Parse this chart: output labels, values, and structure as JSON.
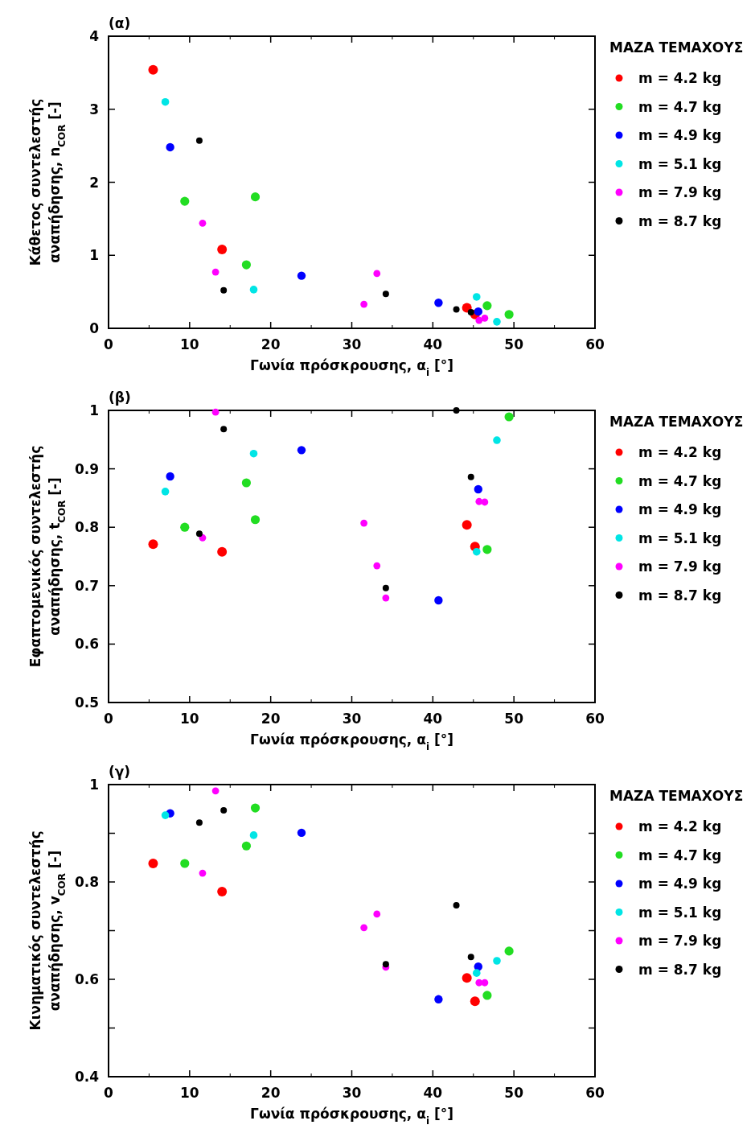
{
  "chart_data": [
    {
      "type": "scatter",
      "title": "(α)",
      "xlabel": "Γωνία πρόσκρουσης, α$_{i}$ [°]",
      "ylabel": "Κάθετος συντελεστής\nαναπήδησης, n$_{COR}$ [-]",
      "legend_title": "ΜΑΖΑ ΤΕΜΑΧΟΥΣ",
      "legend": "right",
      "marker": "circle",
      "xlim": [
        0,
        60
      ],
      "xticks": [
        0,
        10,
        20,
        30,
        40,
        50,
        60
      ],
      "ylim": [
        0,
        4
      ],
      "yticks": [
        0,
        1,
        2,
        3,
        4
      ],
      "series": [
        {
          "name": "m = 4.2 kg",
          "color": "#ff0000",
          "x": [
            5.5,
            14.0,
            44.2,
            45.2
          ],
          "values": [
            3.54,
            1.08,
            0.28,
            0.19
          ]
        },
        {
          "name": "m = 4.7 kg",
          "color": "#22dd22",
          "x": [
            9.4,
            17.0,
            18.1,
            46.7,
            49.4
          ],
          "values": [
            1.74,
            0.87,
            1.8,
            0.31,
            0.19
          ]
        },
        {
          "name": "m = 4.9 kg",
          "color": "#0000ff",
          "x": [
            7.6,
            23.8,
            40.7,
            45.6
          ],
          "values": [
            2.48,
            0.72,
            0.35,
            0.23
          ]
        },
        {
          "name": "m = 5.1 kg",
          "color": "#00e5e5",
          "x": [
            7.0,
            17.9,
            45.4,
            47.9
          ],
          "values": [
            3.1,
            0.53,
            0.43,
            0.09
          ]
        },
        {
          "name": "m = 7.9 kg",
          "color": "#ff00ff",
          "x": [
            11.6,
            13.2,
            31.5,
            33.1,
            45.7,
            46.4
          ],
          "values": [
            1.44,
            0.77,
            0.33,
            0.75,
            0.11,
            0.14
          ]
        },
        {
          "name": "m = 8.7 kg",
          "color": "#000000",
          "x": [
            11.2,
            14.2,
            34.2,
            42.9,
            44.7
          ],
          "values": [
            2.57,
            0.52,
            0.47,
            0.26,
            0.22
          ]
        }
      ]
    },
    {
      "type": "scatter",
      "title": "(β)",
      "xlabel": "Γωνία πρόσκρουσης, α$_{i}$ [°]",
      "ylabel": "Εφαπτομενικός συντελεστής\nαναπήδησης, t$_{COR}$ [-]",
      "legend_title": "ΜΑΖΑ ΤΕΜΑΧΟΥΣ",
      "legend": "right",
      "marker": "circle",
      "xlim": [
        0,
        60
      ],
      "xticks": [
        0,
        10,
        20,
        30,
        40,
        50,
        60
      ],
      "ylim": [
        0.5,
        1
      ],
      "yticks": [
        0.5,
        0.6,
        0.7,
        0.8,
        0.9,
        1
      ],
      "series": [
        {
          "name": "m = 4.2 kg",
          "color": "#ff0000",
          "x": [
            5.5,
            14.0,
            44.2,
            45.2
          ],
          "values": [
            0.771,
            0.758,
            0.804,
            0.767
          ]
        },
        {
          "name": "m = 4.7 kg",
          "color": "#22dd22",
          "x": [
            9.4,
            17.0,
            18.1,
            46.7,
            49.4
          ],
          "values": [
            0.8,
            0.876,
            0.813,
            0.762,
            0.989
          ]
        },
        {
          "name": "m = 4.9 kg",
          "color": "#0000ff",
          "x": [
            7.6,
            23.8,
            40.7,
            45.6
          ],
          "values": [
            0.887,
            0.932,
            0.675,
            0.865
          ]
        },
        {
          "name": "m = 5.1 kg",
          "color": "#00e5e5",
          "x": [
            7.0,
            17.9,
            45.4,
            47.9
          ],
          "values": [
            0.861,
            0.926,
            0.758,
            0.949
          ]
        },
        {
          "name": "m = 7.9 kg",
          "color": "#ff00ff",
          "x": [
            11.6,
            13.2,
            31.5,
            33.1,
            34.2,
            45.7,
            46.4
          ],
          "values": [
            0.782,
            0.997,
            0.807,
            0.734,
            0.679,
            0.844,
            0.843
          ]
        },
        {
          "name": "m = 8.7 kg",
          "color": "#000000",
          "x": [
            11.2,
            14.2,
            34.2,
            42.9,
            44.7
          ],
          "values": [
            0.789,
            0.968,
            0.696,
            1.0,
            0.886
          ]
        }
      ]
    },
    {
      "type": "scatter",
      "title": "(γ)",
      "xlabel": "Γωνία πρόσκρουσης, α$_{i}$ [°]",
      "ylabel": "Κινηματικός συντελεστής\nαναπήδησης, v$_{COR}$ [-]",
      "legend_title": "ΜΑΖΑ ΤΕΜΑΧΟΥΣ",
      "legend": "right",
      "marker": "circle",
      "xlim": [
        0,
        60
      ],
      "xticks": [
        0,
        10,
        20,
        30,
        40,
        50,
        60
      ],
      "ylim": [
        0.4,
        1
      ],
      "yticks": [
        0.4,
        {
          "value": 0.5,
          "label": null
        },
        0.6,
        {
          "value": 0.7,
          "label": null
        },
        0.8,
        {
          "value": 0.9,
          "label": null
        },
        1
      ],
      "series": [
        {
          "name": "m = 4.2 kg",
          "color": "#ff0000",
          "x": [
            5.5,
            14.0,
            44.2,
            45.2
          ],
          "values": [
            0.838,
            0.78,
            0.603,
            0.555
          ]
        },
        {
          "name": "m = 4.7 kg",
          "color": "#22dd22",
          "x": [
            9.4,
            17.0,
            18.1,
            46.7,
            49.4
          ],
          "values": [
            0.838,
            0.874,
            0.952,
            0.567,
            0.658
          ]
        },
        {
          "name": "m = 4.9 kg",
          "color": "#0000ff",
          "x": [
            7.6,
            23.8,
            40.7,
            45.6
          ],
          "values": [
            0.941,
            0.901,
            0.559,
            0.626
          ]
        },
        {
          "name": "m = 5.1 kg",
          "color": "#00e5e5",
          "x": [
            7.0,
            17.9,
            45.4,
            47.9
          ],
          "values": [
            0.937,
            0.896,
            0.613,
            0.638
          ]
        },
        {
          "name": "m = 7.9 kg",
          "color": "#ff00ff",
          "x": [
            11.6,
            13.2,
            31.5,
            33.1,
            34.2,
            45.7,
            46.4
          ],
          "values": [
            0.818,
            0.987,
            0.706,
            0.734,
            0.625,
            0.593,
            0.593
          ]
        },
        {
          "name": "m = 8.7 kg",
          "color": "#000000",
          "x": [
            11.2,
            14.2,
            34.2,
            42.9,
            44.7
          ],
          "values": [
            0.922,
            0.947,
            0.631,
            0.752,
            0.646
          ]
        }
      ]
    }
  ]
}
